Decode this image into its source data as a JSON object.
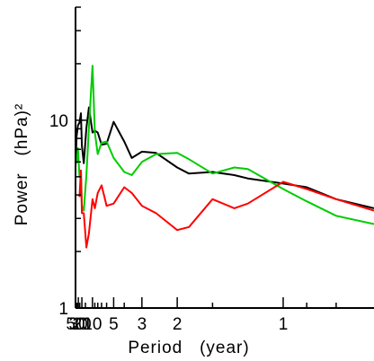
{
  "chart_data": {
    "type": "line",
    "xlabel": "Period   (year)",
    "ylabel": "Power   (hPa)²",
    "x_scale": "reciprocal",
    "y_scale": "log",
    "xlim": [
      50,
      0.7
    ],
    "ylim": [
      1,
      40
    ],
    "x_ticks": [
      50,
      30,
      20,
      10,
      5,
      3,
      2,
      1
    ],
    "x_tick_labels": [
      "50",
      "30",
      "20",
      "10",
      "5",
      "3",
      "2",
      "1"
    ],
    "y_ticks": [
      1,
      10
    ],
    "y_tick_labels": [
      "1",
      "10"
    ],
    "grid": false,
    "series": [
      {
        "color": "#000000",
        "x": [
          50,
          40,
          32,
          26,
          22,
          20,
          17,
          14,
          12,
          10,
          9,
          8,
          7,
          6,
          5,
          4,
          3.5,
          3,
          2.5,
          2,
          1.8,
          1.5,
          1.3,
          1.2,
          1,
          0.9,
          0.8,
          0.7
        ],
        "y": [
          5.6,
          8.2,
          9.4,
          9.7,
          10.9,
          7.3,
          5.9,
          9.1,
          11.7,
          8.6,
          8.8,
          8.6,
          7.4,
          7.5,
          9.8,
          7.7,
          6.3,
          6.8,
          6.7,
          5.6,
          5.2,
          5.3,
          5.1,
          4.9,
          4.6,
          4.4,
          3.8,
          3.4
        ]
      },
      {
        "color": "#00cc00",
        "x": [
          40,
          32,
          26,
          22,
          20,
          17,
          14,
          12,
          10,
          9,
          8,
          7,
          6,
          5,
          4,
          3.5,
          3,
          2.5,
          2,
          1.8,
          1.5,
          1.3,
          1.2,
          1,
          0.9,
          0.8,
          0.7
        ],
        "y": [
          5.9,
          7.1,
          5.0,
          5.4,
          3.5,
          3.3,
          5.1,
          9.1,
          19.5,
          8.6,
          6.6,
          7.6,
          7.7,
          6.3,
          5.3,
          5.1,
          6.0,
          6.6,
          6.7,
          6.2,
          5.2,
          5.6,
          5.5,
          4.3,
          3.7,
          3.1,
          2.8
        ]
      },
      {
        "color": "#ff0000",
        "x": [
          26,
          22,
          20,
          17,
          14,
          12,
          10,
          9,
          8,
          7,
          6,
          5,
          4,
          3.5,
          3,
          2.5,
          2,
          1.8,
          1.5,
          1.3,
          1.2,
          1,
          0.9,
          0.8,
          0.7
        ],
        "y": [
          3.9,
          5.4,
          3.2,
          3.2,
          2.1,
          2.5,
          3.8,
          3.4,
          4.1,
          4.5,
          3.5,
          3.6,
          4.4,
          4.1,
          3.5,
          3.2,
          2.6,
          2.7,
          3.8,
          3.4,
          3.6,
          4.7,
          4.3,
          3.8,
          3.3
        ]
      }
    ]
  }
}
